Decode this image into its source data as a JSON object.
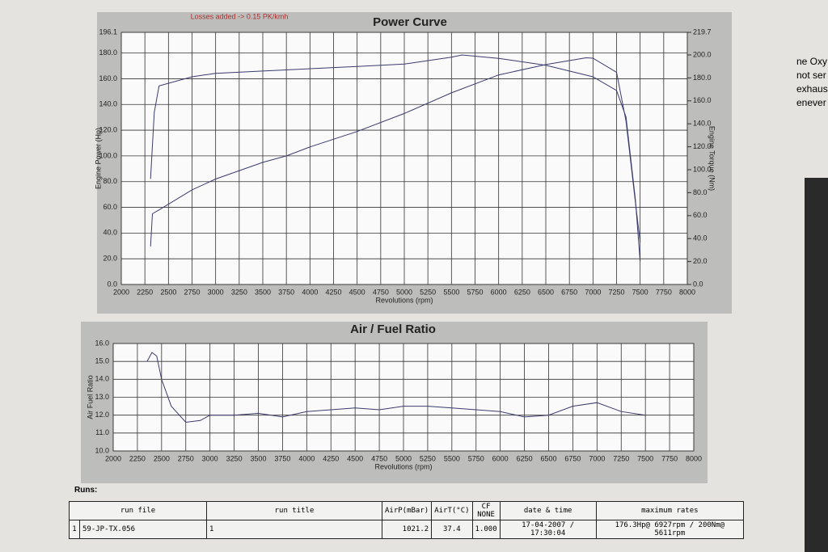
{
  "chart_data": [
    {
      "type": "line",
      "title": "Power Curve",
      "annotation": "Losses added -> 0.15 PK/kmh",
      "x_label": "Revolutions (rpm)",
      "y_label": "Engine Power (Hp)",
      "y2_label": "Engine Torque (Nm)",
      "xlim": [
        2000,
        8000
      ],
      "xticks": [
        2000,
        2250,
        2500,
        2750,
        3000,
        3250,
        3500,
        3750,
        4000,
        4250,
        4500,
        4750,
        5000,
        5250,
        5500,
        5750,
        6000,
        6250,
        6500,
        6750,
        7000,
        7250,
        7500,
        7750,
        8000
      ],
      "ylim": [
        0,
        196.1
      ],
      "yticks": [
        {
          "value": 0,
          "label": "0.0"
        },
        {
          "value": 20,
          "label": "20.0"
        },
        {
          "value": 40,
          "label": "40.0"
        },
        {
          "value": 60,
          "label": "60.0"
        },
        {
          "value": 80,
          "label": "80.0"
        },
        {
          "value": 100,
          "label": "100.0"
        },
        {
          "value": 120,
          "label": "120.0"
        },
        {
          "value": 140,
          "label": "140.0"
        },
        {
          "value": 160,
          "label": "160.0"
        },
        {
          "value": 180,
          "label": "180.0"
        },
        196.1
      ],
      "y2lim": [
        0,
        219.7
      ],
      "y2ticks": [
        {
          "value": 0,
          "label": "0.0"
        },
        {
          "value": 20,
          "label": "20.0"
        },
        {
          "value": 40,
          "label": "40.0"
        },
        {
          "value": 60,
          "label": "60.0"
        },
        {
          "value": 80,
          "label": "80.0"
        },
        {
          "value": 100,
          "label": "100.0"
        },
        {
          "value": 120,
          "label": "120.0"
        },
        {
          "value": 140,
          "label": "140.0"
        },
        {
          "value": 160,
          "label": "160.0"
        },
        {
          "value": 180,
          "label": "180.0"
        },
        {
          "value": 200,
          "label": "200.0"
        },
        219.7
      ],
      "grid": true,
      "series": [
        {
          "color": "#3b3b6e",
          "x": [
            2310,
            2330,
            2400,
            2750,
            3000,
            3500,
            3750,
            4000,
            4500,
            5000,
            5500,
            6000,
            6500,
            6927,
            7000,
            7250,
            7350,
            7450,
            7500
          ],
          "values": [
            29.6,
            55,
            58,
            73.6,
            82,
            95,
            100,
            107,
            119,
            133,
            149,
            163,
            171,
            176.3,
            176,
            165,
            127,
            64,
            33
          ]
        },
        {
          "color": "#3b3b6e",
          "axis": "y2",
          "x": [
            2310,
            2350,
            2400,
            2750,
            3000,
            3500,
            4000,
            4500,
            5000,
            5500,
            5611,
            6000,
            6500,
            7000,
            7250,
            7350,
            7450,
            7500
          ],
          "values": [
            92,
            150,
            173,
            181,
            184,
            186,
            188,
            190,
            192,
            198,
            200,
            197,
            191,
            181,
            169,
            146,
            74,
            20
          ]
        }
      ]
    },
    {
      "type": "line",
      "title": "Air / Fuel Ratio",
      "x_label": "Revolutions (rpm)",
      "y_label": "Air Fuel Ratio",
      "xlim": [
        2000,
        8000
      ],
      "xticks": [
        2000,
        2250,
        2500,
        2750,
        3000,
        3250,
        3500,
        3750,
        4000,
        4250,
        4500,
        4750,
        5000,
        5250,
        5500,
        5750,
        6000,
        6250,
        6500,
        6750,
        7000,
        7250,
        7500,
        7750,
        8000
      ],
      "ylim": [
        10,
        16
      ],
      "yticks": [
        {
          "value": 10,
          "label": "10.0"
        },
        {
          "value": 11,
          "label": "11.0"
        },
        {
          "value": 12,
          "label": "12.0"
        },
        {
          "value": 13,
          "label": "13.0"
        },
        {
          "value": 14,
          "label": "14.0"
        },
        {
          "value": 15,
          "label": "15.0"
        },
        {
          "value": 16,
          "label": "16.0"
        }
      ],
      "grid": true,
      "series": [
        {
          "color": "#3b3b6e",
          "x": [
            2350,
            2400,
            2450,
            2500,
            2600,
            2750,
            2900,
            3000,
            3250,
            3500,
            3750,
            4000,
            4250,
            4500,
            4750,
            5000,
            5250,
            5500,
            5750,
            6000,
            6250,
            6500,
            6750,
            7000,
            7250,
            7500
          ],
          "values": [
            15.0,
            15.5,
            15.3,
            14.0,
            12.5,
            11.6,
            11.7,
            12.0,
            12.0,
            12.1,
            11.9,
            12.2,
            12.3,
            12.4,
            12.3,
            12.5,
            12.5,
            12.4,
            12.3,
            12.2,
            11.9,
            12.0,
            12.5,
            12.7,
            12.2,
            12.0
          ]
        }
      ]
    }
  ],
  "runs_label": "Runs:",
  "table": {
    "header": [
      "run file",
      "run title",
      "AirP(mBar)",
      "AirT(°C)",
      "CF",
      "NONE",
      "date & time",
      "maximum rates"
    ],
    "rows": [
      [
        "1",
        "59-JP-TX.056",
        "1",
        "1021.2",
        "37.4",
        "1.000",
        "17-04-2007 / 17:30:04",
        "176.3Hp@ 6927rpm / 200Nm@ 5611rpm"
      ]
    ]
  },
  "side_text": [
    "ne Oxy",
    "not ser",
    "exhaus",
    "enever"
  ]
}
